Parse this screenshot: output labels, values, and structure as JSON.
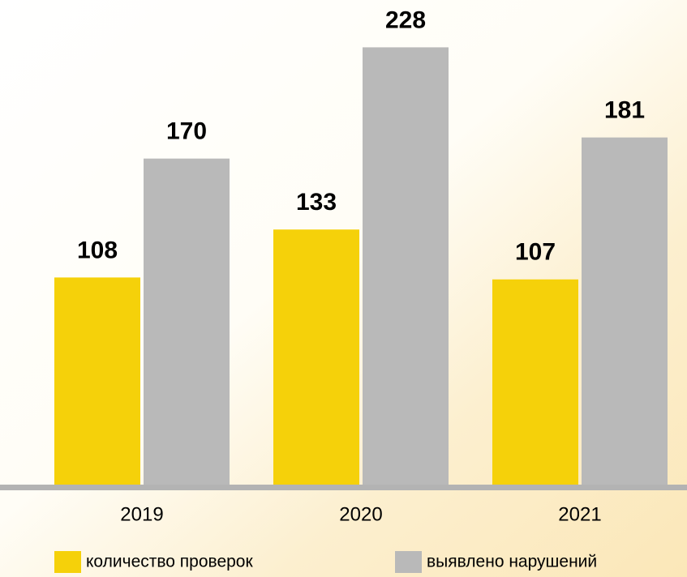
{
  "chart_data": {
    "type": "bar",
    "categories": [
      "2019",
      "2020",
      "2021"
    ],
    "series": [
      {
        "name": "количество проверок",
        "color": "#f5d10a",
        "values": [
          108,
          133,
          107
        ]
      },
      {
        "name": "выявлено нарушений",
        "color": "#b9b9b9",
        "values": [
          170,
          228,
          181
        ]
      }
    ],
    "ylim": [
      0,
      240
    ]
  }
}
